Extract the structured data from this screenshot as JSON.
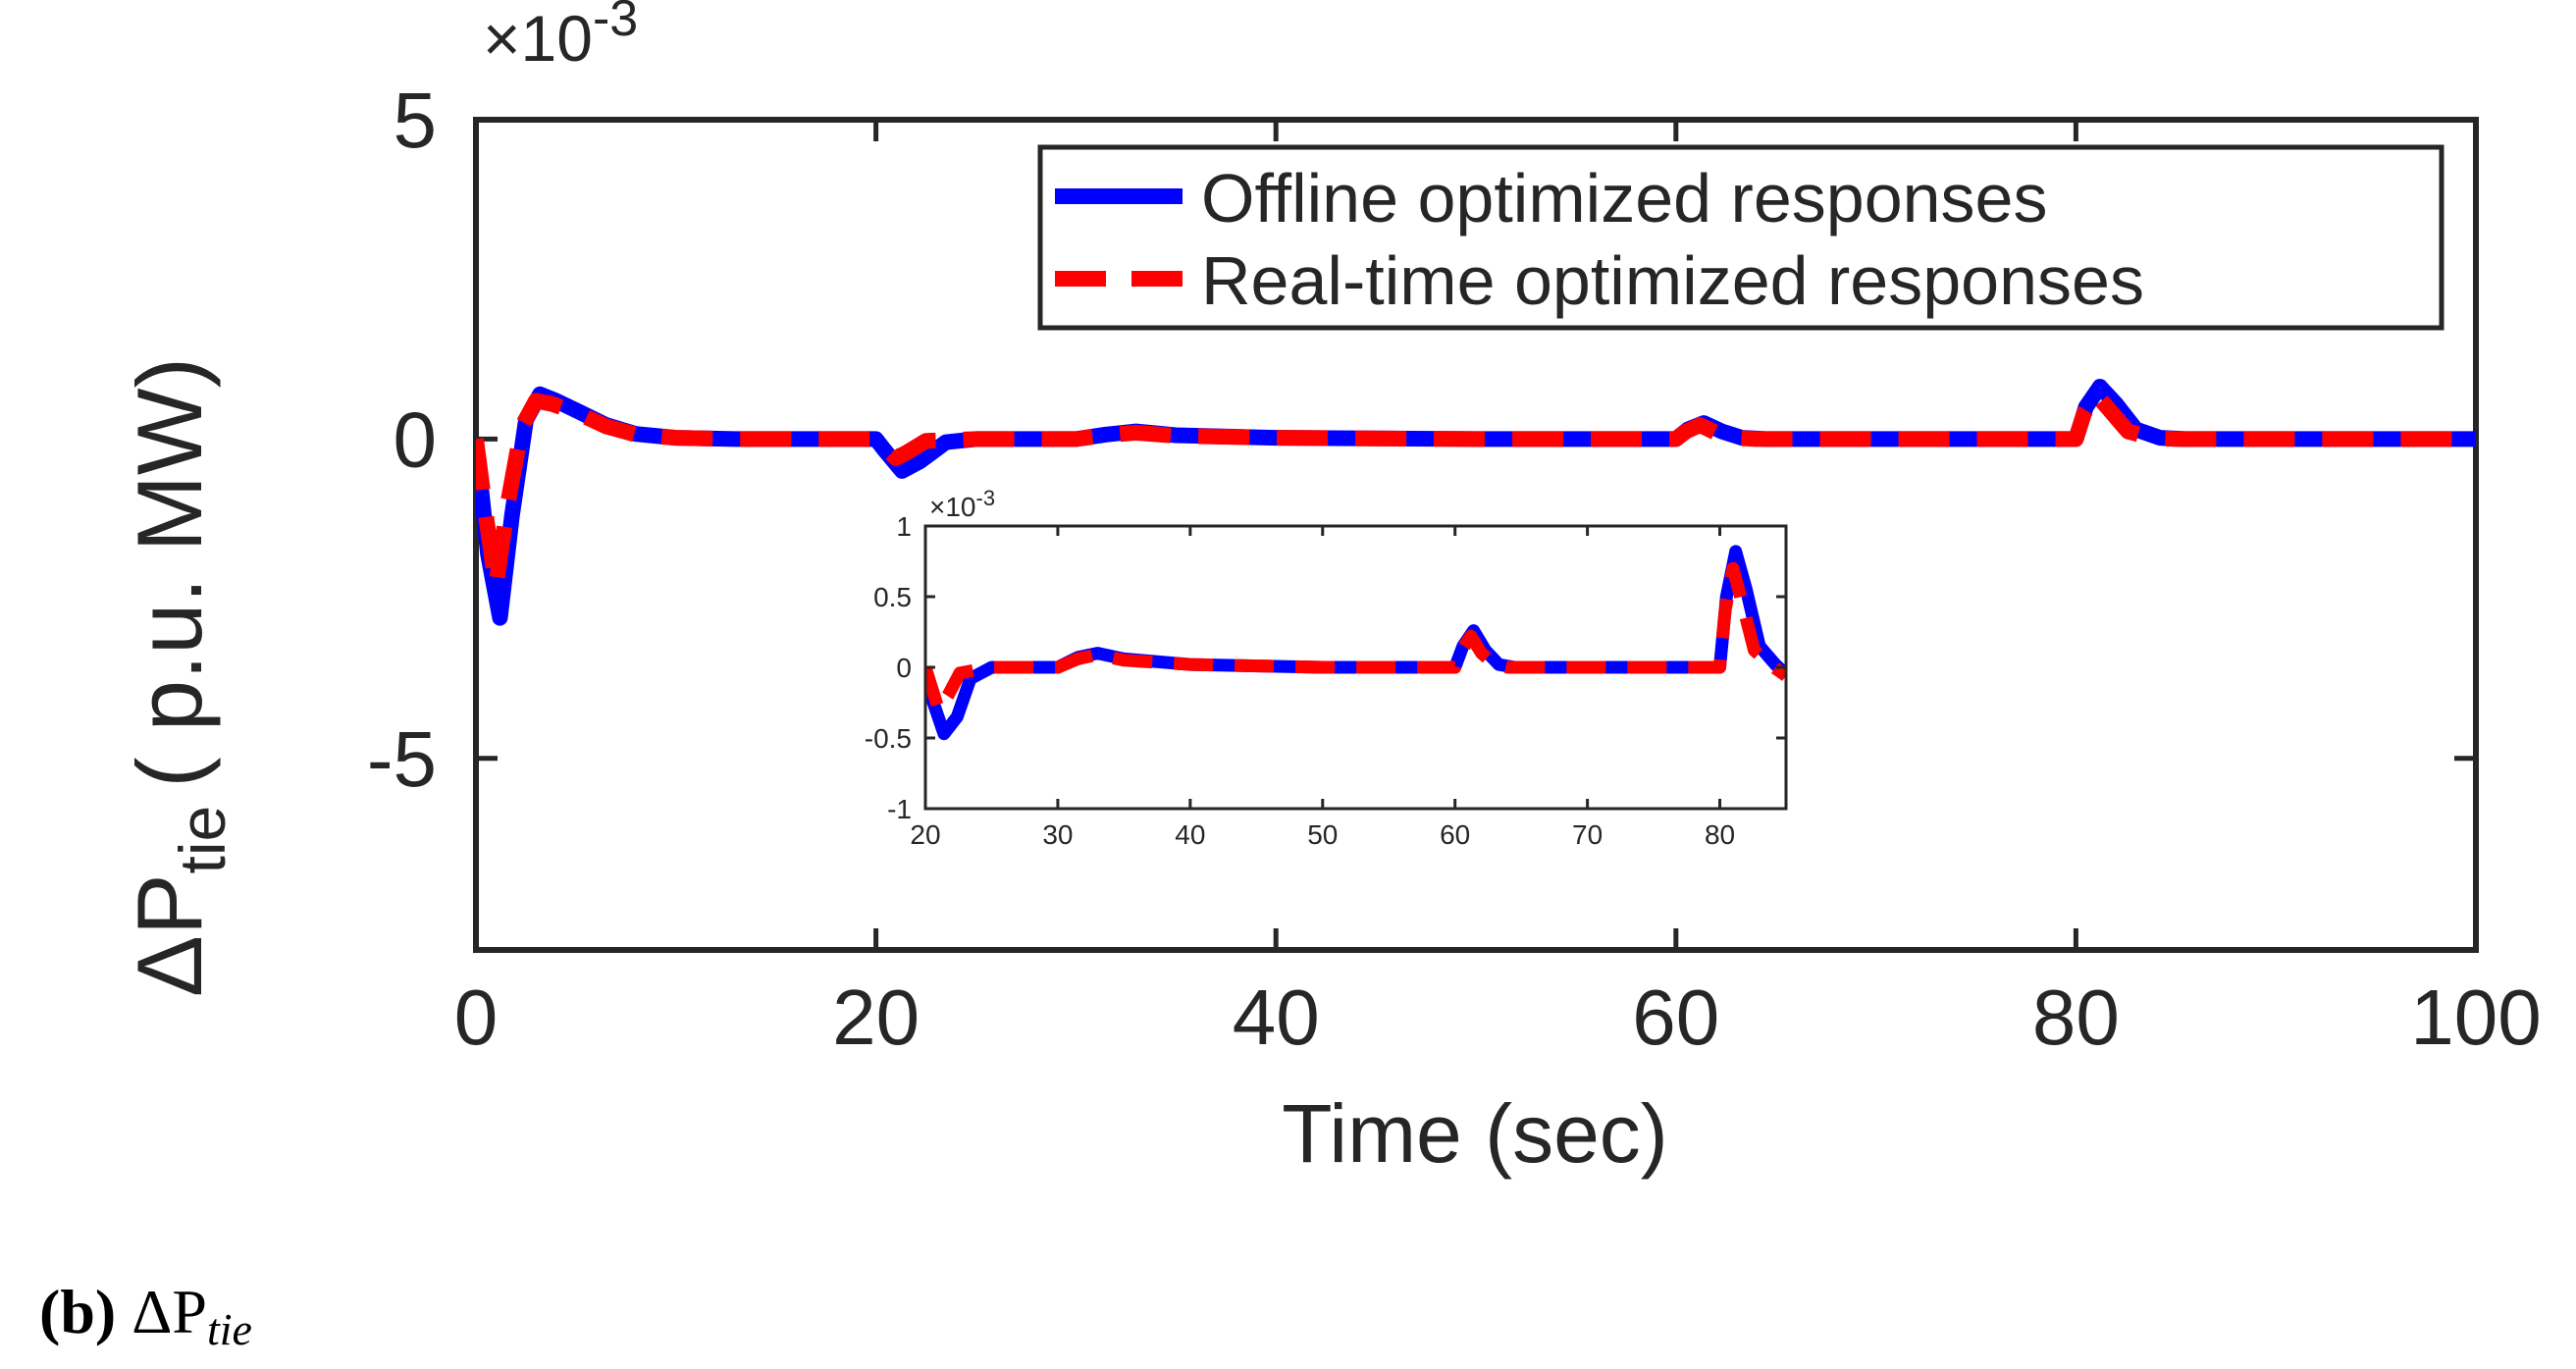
{
  "chart_data": [
    {
      "name": "main",
      "type": "line",
      "xlabel": "Time (sec)",
      "ylabel_symbol": "ΔP",
      "ylabel_sub": "tie",
      "ylabel_unit": "( p.u. MW)",
      "y_exponent_label": "×10",
      "y_exponent_power": "-3",
      "xlim": [
        0,
        100
      ],
      "ylim": [
        -8,
        5
      ],
      "xticks": [
        0,
        20,
        40,
        60,
        80,
        100
      ],
      "xtick_labels": [
        "0",
        "20",
        "40",
        "60",
        "80",
        "100"
      ],
      "yticks": [
        5,
        0,
        -5
      ],
      "ytick_labels": [
        "5",
        "0",
        "-5"
      ],
      "legend": [
        "Offline optimized responses",
        "Real-time optimized responses"
      ],
      "legend_location": "top-right",
      "colors": {
        "offline": "#0000ff",
        "realtime": "#ff0000",
        "axis": "#262626"
      },
      "series": [
        {
          "name": "Offline optimized responses",
          "style": "solid",
          "x": [
            0,
            0.6,
            1.2,
            1.8,
            2.5,
            3.2,
            4.0,
            5.0,
            6.5,
            8.0,
            10.0,
            13.0,
            18.0,
            20.0,
            20.5,
            21.3,
            22.2,
            23.5,
            25.0,
            30.0,
            31.5,
            33.0,
            35.0,
            40.0,
            50.0,
            60.0,
            60.6,
            61.4,
            62.3,
            63.3,
            64.5,
            66.0,
            80.0,
            80.5,
            81.2,
            82.0,
            83.0,
            84.2,
            85.5,
            87.0,
            100.0
          ],
          "values": [
            0,
            -1.8,
            -2.8,
            -1.2,
            0.3,
            0.7,
            0.6,
            0.45,
            0.22,
            0.08,
            0.02,
            0.0,
            0.0,
            0.0,
            -0.2,
            -0.5,
            -0.35,
            -0.05,
            0.0,
            0.0,
            0.07,
            0.12,
            0.06,
            0.02,
            0.0,
            0.0,
            0.15,
            0.25,
            0.12,
            0.02,
            0.0,
            0.0,
            0.0,
            0.5,
            0.82,
            0.55,
            0.15,
            0.02,
            0.0,
            0.0,
            0.0
          ]
        },
        {
          "name": "Real-time optimized responses",
          "style": "dashed",
          "x": [
            0,
            0.5,
            1.0,
            1.6,
            2.3,
            3.0,
            3.8,
            5.0,
            6.5,
            8.0,
            10.0,
            13.0,
            18.0,
            20.0,
            20.4,
            21.0,
            21.6,
            22.5,
            25.0,
            30.0,
            31.5,
            33.0,
            35.0,
            40.0,
            50.0,
            60.0,
            60.5,
            61.2,
            62.0,
            63.0,
            64.0,
            66.0,
            80.0,
            80.4,
            81.0,
            81.7,
            82.6,
            83.8,
            85.0,
            87.0,
            100.0
          ],
          "values": [
            0,
            -1.2,
            -2.3,
            -1.0,
            0.2,
            0.6,
            0.55,
            0.42,
            0.2,
            0.07,
            0.02,
            0.0,
            0.0,
            0.0,
            -0.1,
            -0.3,
            -0.2,
            -0.03,
            0.0,
            0.0,
            0.06,
            0.1,
            0.05,
            0.02,
            0.0,
            0.0,
            0.12,
            0.22,
            0.1,
            0.02,
            0.0,
            0.0,
            0.0,
            0.4,
            0.7,
            0.45,
            0.12,
            0.02,
            0.0,
            0.0,
            0.0
          ]
        }
      ]
    },
    {
      "name": "inset",
      "type": "line",
      "y_exponent_label": "×10",
      "y_exponent_power": "-3",
      "xlim": [
        20,
        85
      ],
      "ylim": [
        -1,
        1
      ],
      "xticks": [
        20,
        30,
        40,
        50,
        60,
        70,
        80
      ],
      "xtick_labels": [
        "20",
        "30",
        "40",
        "50",
        "60",
        "70",
        "80"
      ],
      "yticks": [
        1,
        0.5,
        0,
        -0.5,
        -1
      ],
      "ytick_labels": [
        "1",
        "0.5",
        "0",
        "-0.5",
        "-1"
      ],
      "series": [
        {
          "name": "Offline optimized responses",
          "style": "solid",
          "x": [
            20,
            20.6,
            21.4,
            22.4,
            23.4,
            25.0,
            30.0,
            31.5,
            33.0,
            35.0,
            40.0,
            50.0,
            60.0,
            60.6,
            61.4,
            62.3,
            63.3,
            64.5,
            66.0,
            80.0,
            80.5,
            81.2,
            82.0,
            83.0,
            84.2,
            85.0
          ],
          "values": [
            0,
            -0.25,
            -0.47,
            -0.35,
            -0.08,
            0.0,
            0.0,
            0.07,
            0.1,
            0.06,
            0.02,
            0.0,
            0.0,
            0.15,
            0.26,
            0.12,
            0.02,
            0.0,
            0.0,
            0.0,
            0.5,
            0.82,
            0.55,
            0.15,
            0.02,
            -0.05
          ]
        },
        {
          "name": "Real-time optimized responses",
          "style": "dashed",
          "x": [
            20,
            20.5,
            21.0,
            21.7,
            22.6,
            25.0,
            30.0,
            31.5,
            33.0,
            35.0,
            40.0,
            50.0,
            60.0,
            60.5,
            61.2,
            62.0,
            63.0,
            64.0,
            66.0,
            80.0,
            80.4,
            81.0,
            81.7,
            82.6,
            83.8,
            85.0
          ],
          "values": [
            0,
            -0.15,
            -0.3,
            -0.2,
            -0.04,
            0.0,
            0.0,
            0.06,
            0.09,
            0.05,
            0.02,
            0.0,
            0.0,
            0.12,
            0.22,
            0.1,
            0.02,
            0.0,
            0.0,
            0.0,
            0.4,
            0.7,
            0.45,
            0.12,
            0.02,
            -0.06
          ]
        }
      ]
    }
  ],
  "caption": {
    "label": "(b)",
    "symbol": "ΔP",
    "sub": "tie"
  }
}
